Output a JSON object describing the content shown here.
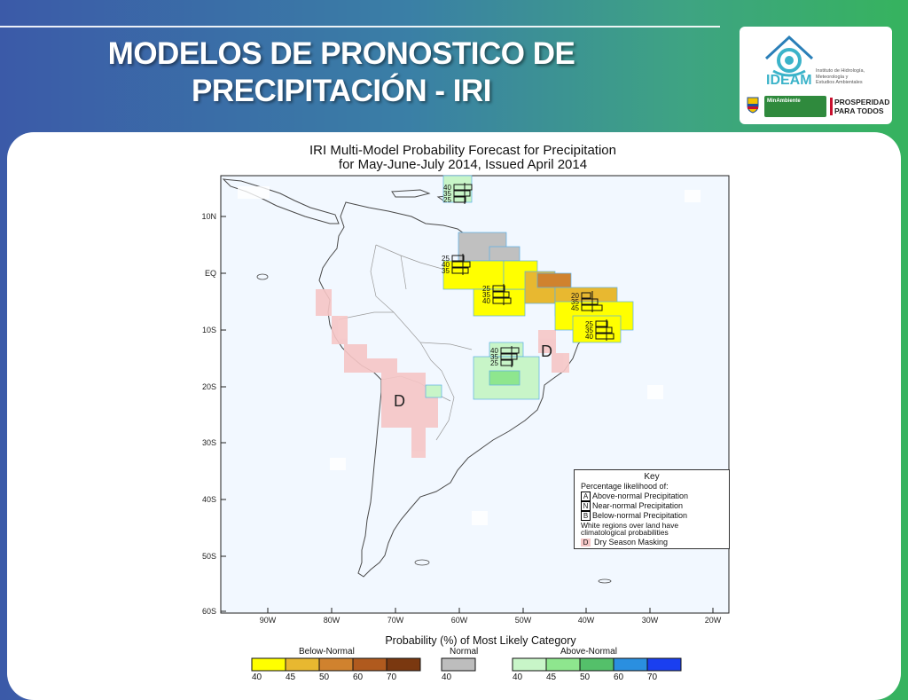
{
  "slide": {
    "title_line1": "MODELOS DE PRONOSTICO DE",
    "title_line2": "PRECIPITACIÓN - IRI"
  },
  "logos": {
    "ideam_name": "IDEAM",
    "ideam_sub": [
      "Instituto de Hidrología,",
      "Meteorología y",
      "Estudios Ambientales"
    ],
    "ministry": "MinAmbiente",
    "prosperidad_line1": "PROSPERIDAD",
    "prosperidad_line2": "PARA TODOS"
  },
  "figure": {
    "title_line1": "IRI Multi-Model Probability Forecast for Precipitation",
    "title_line2": "for May-June-July 2014, Issued April 2014",
    "lat_ticks": [
      "10N",
      "EQ",
      "10S",
      "20S",
      "30S",
      "40S",
      "50S",
      "60S"
    ],
    "lon_ticks": [
      "90W",
      "80W",
      "70W",
      "60W",
      "50W",
      "40W",
      "30W",
      "20W"
    ],
    "dry_mask_letter": "D",
    "key": {
      "title": "Key",
      "subtitle": "Percentage likelihood of:",
      "rows": [
        {
          "letter": "A",
          "text": "Above-normal Precipitation"
        },
        {
          "letter": "N",
          "text": "Near-normal Precipitation"
        },
        {
          "letter": "B",
          "text": "Below-normal Precipitation"
        }
      ],
      "note_line1": "White regions over land have",
      "note_line2": "climatological probabilities",
      "dry_letter": "D",
      "dry_text": "Dry Season Masking"
    },
    "colorbar": {
      "title": "Probability (%) of Most Likely Category",
      "below_label": "Below-Normal",
      "normal_label": "Normal",
      "above_label": "Above-Normal",
      "below_ticks": [
        "40",
        "45",
        "50",
        "60",
        "70"
      ],
      "normal_ticks": [
        "40"
      ],
      "above_ticks": [
        "40",
        "45",
        "50",
        "60",
        "70"
      ],
      "below_colors": [
        "#ffff00",
        "#e8b830",
        "#d0822e",
        "#b05a1e",
        "#7a3810"
      ],
      "normal_colors": [
        "#bdbdbd"
      ],
      "above_colors": [
        "#c8f5c8",
        "#8ee68e",
        "#54c06a",
        "#2a8fe0",
        "#1a3ff0"
      ]
    },
    "tercile_boxes": [
      {
        "values": [
          "40",
          "35",
          "25"
        ]
      },
      {
        "values": [
          "25",
          "40",
          "35"
        ]
      },
      {
        "values": [
          "25",
          "35",
          "40"
        ]
      },
      {
        "values": [
          "20",
          "35",
          "45"
        ]
      },
      {
        "values": [
          "25",
          "35",
          "40"
        ]
      },
      {
        "values": [
          "40",
          "35",
          "25"
        ]
      }
    ]
  }
}
